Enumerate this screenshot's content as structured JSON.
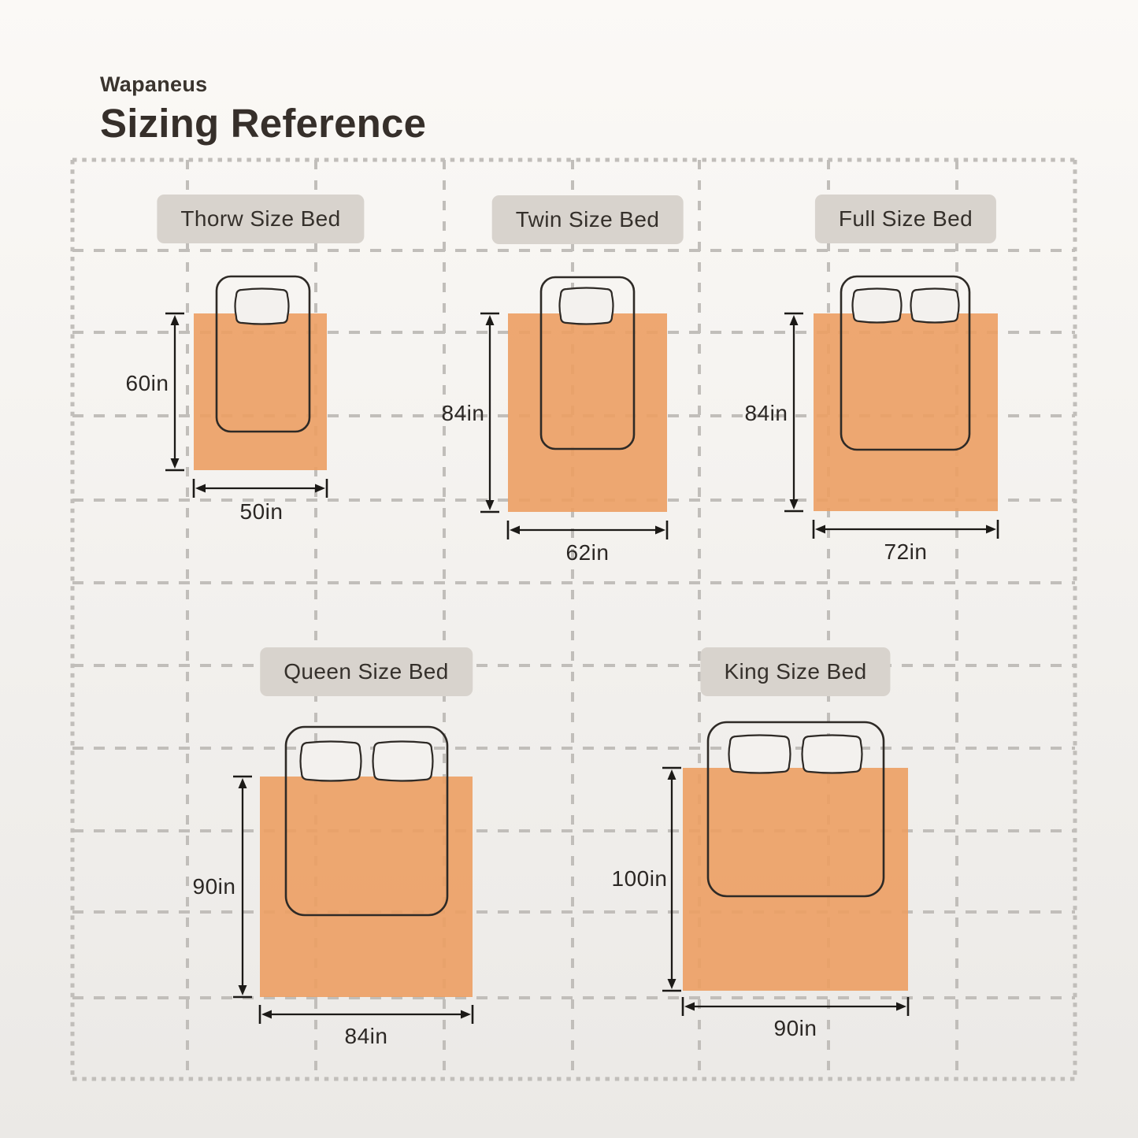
{
  "header": {
    "brand": "Wapaneus",
    "title": "Sizing Reference"
  },
  "beds": [
    {
      "label": "Thorw Size Bed",
      "height": "60in",
      "width": "50in"
    },
    {
      "label": "Twin Size Bed",
      "height": "84in",
      "width": "62in"
    },
    {
      "label": "Full Size Bed",
      "height": "84in",
      "width": "72in"
    },
    {
      "label": "Queen Size Bed",
      "height": "90in",
      "width": "84in"
    },
    {
      "label": "King Size Bed",
      "height": "100in",
      "width": "90in"
    }
  ],
  "colors": {
    "blanket": "#ec9e63",
    "badge_bg": "#d8d3cd",
    "grid": "#c1beba",
    "bed_outline": "#2e2a26",
    "arrow": "#1c1a17",
    "text": "#362f2a"
  }
}
